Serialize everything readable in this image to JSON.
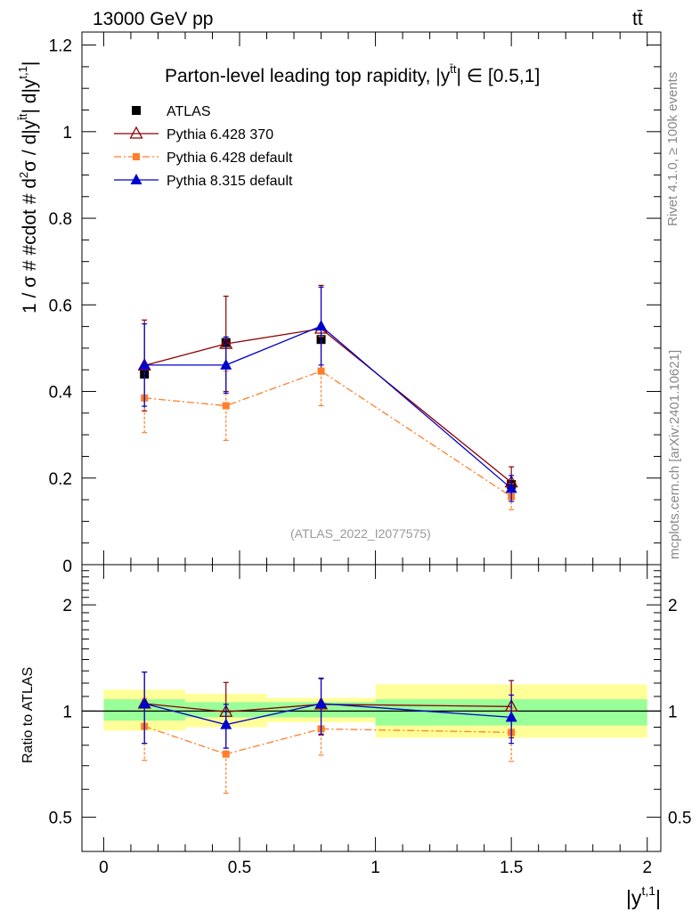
{
  "header": {
    "energy_label": "13000 GeV pp",
    "process_label": "tt̄"
  },
  "side_labels": {
    "rivet": "Rivet 4.1.0, ≥ 100k events",
    "mcplots": "mcplots.cern.ch [arXiv:2401.10621]"
  },
  "colors": {
    "atlas": "#000000",
    "py6_370": "#8b0000",
    "py6_default": "#ff7f2a",
    "py8_default": "#0000cc",
    "band_green": "#99ff99",
    "band_yellow": "#ffff99"
  },
  "chart_data": [
    {
      "type": "scatter",
      "panel": "main",
      "title": "Parton-level leading top rapidity, |y^{t̄t}| ∈ [0.5,1]",
      "title_parts": {
        "before": "Parton-level leading top rapidity, |y",
        "sup": "t̄t",
        "after": "| ∈ [0.5,1]"
      },
      "ylabel": "1 / σ # #cdot # d²σ / d|y^{t̄t}| d|y^{t,1}|",
      "ylabel_parts": {
        "a": "1 / σ # #cdot # d",
        "b": "2",
        "c": "σ / d|y",
        "d": "t̄t",
        "e": "| d|y",
        "f": "t,1",
        "g": "|"
      },
      "watermark": "(ATLAS_2022_I2077575)",
      "xlim": [
        -0.08,
        2.05
      ],
      "ylim": [
        0,
        1.23
      ],
      "yticks": [
        0.2,
        0.4,
        0.6,
        0.8,
        1.0,
        1.2
      ],
      "ytick_labels": [
        "0.2",
        "0.4",
        "0.6",
        "0.8",
        "1",
        "1.2"
      ],
      "ybottom_label": "0",
      "legend_position": "top-left",
      "series": [
        {
          "name": "ATLAS",
          "key": "atlas",
          "marker": "square",
          "line": "none",
          "x": [
            0.15,
            0.45,
            0.8,
            1.5
          ],
          "y": [
            0.44,
            0.513,
            0.52,
            0.185
          ],
          "err": [
            0.0,
            0.0,
            0.0,
            0.0
          ]
        },
        {
          "name": "Pythia 6.428 370",
          "key": "py6_370",
          "marker": "triangle-open",
          "line": "solid",
          "x": [
            0.15,
            0.45,
            0.8,
            1.5
          ],
          "y": [
            0.46,
            0.51,
            0.545,
            0.19
          ],
          "err": [
            0.105,
            0.11,
            0.1,
            0.036
          ]
        },
        {
          "name": "Pythia 6.428 default",
          "key": "py6_default",
          "marker": "square-small",
          "line": "dashdot",
          "x": [
            0.15,
            0.45,
            0.8,
            1.5
          ],
          "y": [
            0.385,
            0.367,
            0.447,
            0.157
          ],
          "err": [
            0.08,
            0.08,
            0.08,
            0.03
          ]
        },
        {
          "name": "Pythia 8.315 default",
          "key": "py8_default",
          "marker": "triangle",
          "line": "solid",
          "x": [
            0.15,
            0.45,
            0.8,
            1.5
          ],
          "y": [
            0.461,
            0.461,
            0.551,
            0.176
          ],
          "err": [
            0.095,
            0.065,
            0.09,
            0.03
          ]
        }
      ]
    },
    {
      "type": "scatter",
      "panel": "ratio",
      "ylabel": "Ratio to ATLAS",
      "xlabel": "|y^{t,1}|",
      "xlabel_parts": {
        "a": "|y",
        "b": "t,1",
        "c": "|"
      },
      "xlim": [
        -0.08,
        2.05
      ],
      "ylim": [
        0.4,
        2.6
      ],
      "log_y": true,
      "yticks": [
        0.5,
        1,
        2
      ],
      "ytick_labels": [
        "0.5",
        "1",
        "2"
      ],
      "xticks": [
        0,
        0.5,
        1,
        1.5,
        2
      ],
      "xtick_labels": [
        "0",
        "0.5",
        "1",
        "1.5",
        "2"
      ],
      "reference_line": 1,
      "bands": {
        "bins": [
          [
            0.0,
            0.3
          ],
          [
            0.3,
            0.6
          ],
          [
            0.6,
            1.0
          ],
          [
            1.0,
            2.0
          ]
        ],
        "green": [
          [
            0.94,
            1.08
          ],
          [
            0.96,
            1.06
          ],
          [
            0.96,
            1.06
          ],
          [
            0.91,
            1.08
          ]
        ],
        "yellow": [
          [
            0.88,
            1.15
          ],
          [
            0.9,
            1.12
          ],
          [
            0.93,
            1.09
          ],
          [
            0.84,
            1.19
          ]
        ]
      },
      "series": [
        {
          "name": "Pythia 6.428 370",
          "key": "py6_370",
          "marker": "triangle-open",
          "line": "solid",
          "x": [
            0.15,
            0.45,
            0.8,
            1.5
          ],
          "y": [
            1.05,
            0.995,
            1.045,
            1.03
          ],
          "err": [
            0.24,
            0.21,
            0.19,
            0.19
          ]
        },
        {
          "name": "Pythia 6.428 default",
          "key": "py6_default",
          "marker": "square-small",
          "line": "dashdot",
          "x": [
            0.15,
            0.45,
            0.8,
            1.5
          ],
          "y": [
            0.905,
            0.755,
            0.89,
            0.87
          ],
          "err": [
            0.18,
            0.17,
            0.14,
            0.15
          ]
        },
        {
          "name": "Pythia 8.315 default",
          "key": "py8_default",
          "marker": "triangle",
          "line": "solid",
          "x": [
            0.15,
            0.45,
            0.8,
            1.5
          ],
          "y": [
            1.05,
            0.915,
            1.05,
            0.96
          ],
          "err": [
            0.24,
            0.13,
            0.19,
            0.15
          ]
        }
      ]
    }
  ]
}
